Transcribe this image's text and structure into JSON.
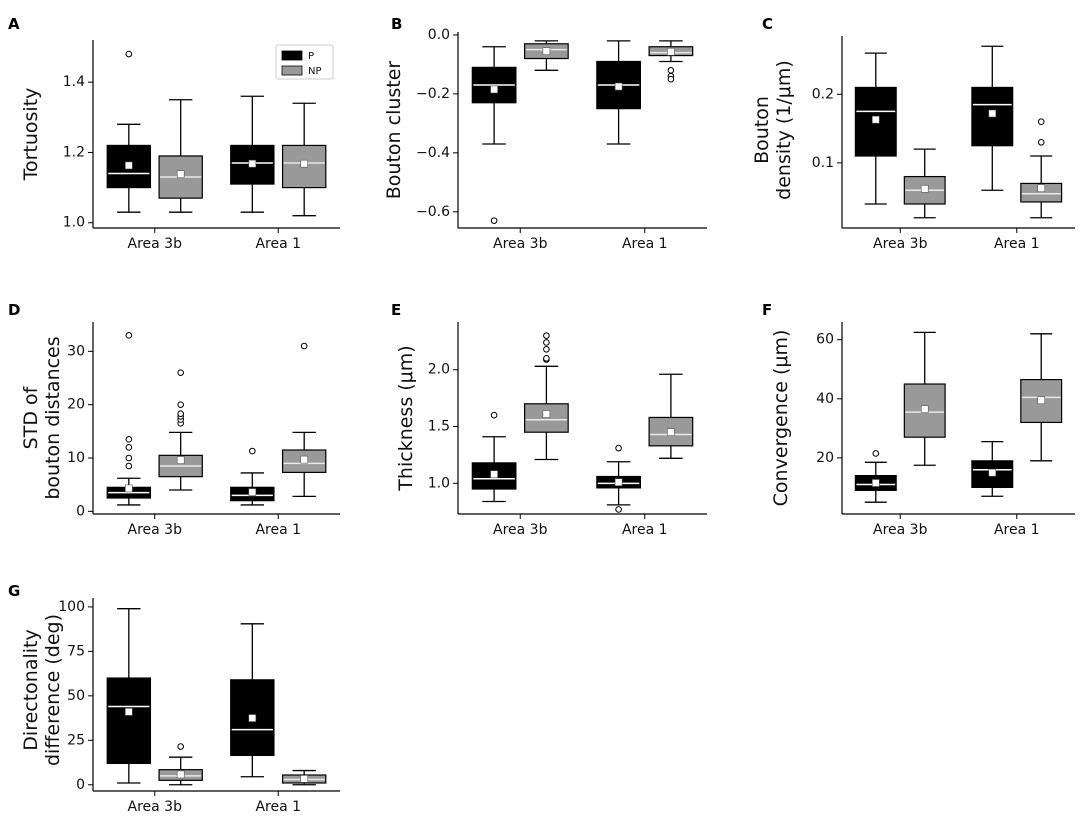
{
  "colors": {
    "P": "#000000",
    "NP": "#999999",
    "median_P": "#ffffff",
    "median_NP": "#e8e8e8",
    "mean_marker": "#ffffff"
  },
  "legend": {
    "entries": [
      "P",
      "NP"
    ]
  },
  "chart_data": [
    {
      "type": "box",
      "panel": "A",
      "ylabel": [
        "Tortuosity"
      ],
      "categories": [
        "Area 3b",
        "Area 1"
      ],
      "ylim": [
        0.985,
        1.52
      ],
      "yticks": [
        1.0,
        1.2,
        1.4
      ],
      "ytick_labels": [
        "1.0",
        "1.2",
        "1.4"
      ],
      "legend": true,
      "series": [
        {
          "name": "P",
          "boxes": [
            {
              "whislo": 1.03,
              "q1": 1.1,
              "med": 1.14,
              "q3": 1.22,
              "whishi": 1.28,
              "mean": 1.163,
              "fliers": [
                1.48
              ]
            },
            {
              "whislo": 1.03,
              "q1": 1.11,
              "med": 1.17,
              "q3": 1.22,
              "whishi": 1.36,
              "mean": 1.168,
              "fliers": []
            }
          ]
        },
        {
          "name": "NP",
          "boxes": [
            {
              "whislo": 1.03,
              "q1": 1.07,
              "med": 1.13,
              "q3": 1.19,
              "whishi": 1.35,
              "mean": 1.138,
              "fliers": []
            },
            {
              "whislo": 1.02,
              "q1": 1.1,
              "med": 1.17,
              "q3": 1.22,
              "whishi": 1.34,
              "mean": 1.168,
              "fliers": []
            }
          ]
        }
      ]
    },
    {
      "type": "box",
      "panel": "B",
      "ylabel": [
        "Bouton cluster"
      ],
      "categories": [
        "Area 3b",
        "Area 1"
      ],
      "ylim": [
        -0.655,
        0.01
      ],
      "yticks": [
        -0.6,
        -0.4,
        -0.2,
        0.0
      ],
      "ytick_labels": [
        "−0.6",
        "−0.4",
        "−0.2",
        "0.0"
      ],
      "series": [
        {
          "name": "P",
          "boxes": [
            {
              "whislo": -0.37,
              "q1": -0.23,
              "med": -0.17,
              "q3": -0.11,
              "whishi": -0.04,
              "mean": -0.185,
              "fliers": [
                -0.63
              ]
            },
            {
              "whislo": -0.37,
              "q1": -0.25,
              "med": -0.17,
              "q3": -0.09,
              "whishi": -0.02,
              "mean": -0.175,
              "fliers": []
            }
          ]
        },
        {
          "name": "NP",
          "boxes": [
            {
              "whislo": -0.12,
              "q1": -0.08,
              "med": -0.05,
              "q3": -0.03,
              "whishi": -0.02,
              "mean": -0.055,
              "fliers": []
            },
            {
              "whislo": -0.09,
              "q1": -0.07,
              "med": -0.06,
              "q3": -0.04,
              "whishi": -0.02,
              "mean": -0.057,
              "fliers": [
                -0.12,
                -0.14,
                -0.15
              ]
            }
          ]
        }
      ]
    },
    {
      "type": "box",
      "panel": "C",
      "ylabel": [
        "Bouton",
        "density (1/μm)"
      ],
      "categories": [
        "Area 3b",
        "Area 1"
      ],
      "ylim": [
        0.005,
        0.285
      ],
      "yticks": [
        0.1,
        0.2
      ],
      "ytick_labels": [
        "0.1",
        "0.2"
      ],
      "series": [
        {
          "name": "P",
          "boxes": [
            {
              "whislo": 0.04,
              "q1": 0.11,
              "med": 0.175,
              "q3": 0.21,
              "whishi": 0.26,
              "mean": 0.163,
              "fliers": []
            },
            {
              "whislo": 0.06,
              "q1": 0.125,
              "med": 0.185,
              "q3": 0.21,
              "whishi": 0.27,
              "mean": 0.172,
              "fliers": []
            }
          ]
        },
        {
          "name": "NP",
          "boxes": [
            {
              "whislo": 0.02,
              "q1": 0.04,
              "med": 0.06,
              "q3": 0.08,
              "whishi": 0.12,
              "mean": 0.062,
              "fliers": []
            },
            {
              "whislo": 0.02,
              "q1": 0.043,
              "med": 0.055,
              "q3": 0.07,
              "whishi": 0.11,
              "mean": 0.063,
              "fliers": [
                0.13,
                0.16
              ]
            }
          ]
        }
      ]
    },
    {
      "type": "box",
      "panel": "D",
      "ylabel": [
        "STD of",
        "bouton distances"
      ],
      "categories": [
        "Area 3b",
        "Area 1"
      ],
      "ylim": [
        -0.5,
        35.5
      ],
      "yticks": [
        0,
        10,
        20,
        30
      ],
      "ytick_labels": [
        "0",
        "10",
        "20",
        "30"
      ],
      "series": [
        {
          "name": "P",
          "boxes": [
            {
              "whislo": 1.2,
              "q1": 2.5,
              "med": 3.5,
              "q3": 4.5,
              "whishi": 6.2,
              "mean": 4.3,
              "fliers": [
                8.5,
                10,
                12,
                13.5,
                33
              ]
            },
            {
              "whislo": 1.2,
              "q1": 2.0,
              "med": 3.0,
              "q3": 4.5,
              "whishi": 7.2,
              "mean": 3.6,
              "fliers": [
                11.3
              ]
            }
          ]
        },
        {
          "name": "NP",
          "boxes": [
            {
              "whislo": 4.0,
              "q1": 6.5,
              "med": 8.5,
              "q3": 10.5,
              "whishi": 14.8,
              "mean": 9.6,
              "fliers": [
                16.5,
                17.2,
                17.8,
                18.3,
                20,
                26
              ]
            },
            {
              "whislo": 2.8,
              "q1": 7.3,
              "med": 9.0,
              "q3": 11.5,
              "whishi": 14.8,
              "mean": 9.7,
              "fliers": [
                31
              ]
            }
          ]
        }
      ]
    },
    {
      "type": "box",
      "panel": "E",
      "ylabel": [
        "Thickness (μm)"
      ],
      "categories": [
        "Area 3b",
        "Area 1"
      ],
      "ylim": [
        0.73,
        2.42
      ],
      "yticks": [
        1.0,
        1.5,
        2.0
      ],
      "ytick_labels": [
        "1.0",
        "1.5",
        "2.0"
      ],
      "series": [
        {
          "name": "P",
          "boxes": [
            {
              "whislo": 0.84,
              "q1": 0.95,
              "med": 1.04,
              "q3": 1.18,
              "whishi": 1.41,
              "mean": 1.08,
              "fliers": [
                1.6
              ]
            },
            {
              "whislo": 0.81,
              "q1": 0.96,
              "med": 1.0,
              "q3": 1.06,
              "whishi": 1.19,
              "mean": 1.01,
              "fliers": [
                0.77,
                1.31
              ]
            }
          ]
        },
        {
          "name": "NP",
          "boxes": [
            {
              "whislo": 1.21,
              "q1": 1.45,
              "med": 1.56,
              "q3": 1.7,
              "whishi": 2.03,
              "mean": 1.61,
              "fliers": [
                2.09,
                2.1,
                2.18,
                2.24,
                2.3
              ]
            },
            {
              "whislo": 1.22,
              "q1": 1.33,
              "med": 1.43,
              "q3": 1.58,
              "whishi": 1.96,
              "mean": 1.45,
              "fliers": []
            }
          ]
        }
      ]
    },
    {
      "type": "box",
      "panel": "F",
      "ylabel": [
        "Convergence (μm)"
      ],
      "categories": [
        "Area 3b",
        "Area 1"
      ],
      "ylim": [
        1,
        66
      ],
      "yticks": [
        20,
        40,
        60
      ],
      "ytick_labels": [
        "20",
        "40",
        "60"
      ],
      "series": [
        {
          "name": "P",
          "boxes": [
            {
              "whislo": 5,
              "q1": 9,
              "med": 11,
              "q3": 14,
              "whishi": 18.5,
              "mean": 11.5,
              "fliers": [
                21.5
              ]
            },
            {
              "whislo": 7,
              "q1": 10,
              "med": 16,
              "q3": 19,
              "whishi": 25.5,
              "mean": 15,
              "fliers": []
            }
          ]
        },
        {
          "name": "NP",
          "boxes": [
            {
              "whislo": 17.5,
              "q1": 27,
              "med": 35.5,
              "q3": 45,
              "whishi": 62.5,
              "mean": 36.5,
              "fliers": []
            },
            {
              "whislo": 19,
              "q1": 32,
              "med": 40.5,
              "q3": 46.5,
              "whishi": 62,
              "mean": 39.5,
              "fliers": []
            }
          ]
        }
      ]
    },
    {
      "type": "box",
      "panel": "G",
      "ylabel": [
        "Directonality",
        "difference (deg)"
      ],
      "categories": [
        "Area 3b",
        "Area 1"
      ],
      "ylim": [
        -3.5,
        105
      ],
      "yticks": [
        0,
        25,
        50,
        75,
        100
      ],
      "ytick_labels": [
        "0",
        "25",
        "50",
        "75",
        "100"
      ],
      "series": [
        {
          "name": "P",
          "boxes": [
            {
              "whislo": 1,
              "q1": 12,
              "med": 44,
              "q3": 60,
              "whishi": 99,
              "mean": 41,
              "fliers": []
            },
            {
              "whislo": 4.5,
              "q1": 16.5,
              "med": 31,
              "q3": 59,
              "whishi": 90.5,
              "mean": 37.5,
              "fliers": []
            }
          ]
        },
        {
          "name": "NP",
          "boxes": [
            {
              "whislo": 0,
              "q1": 2.5,
              "med": 5,
              "q3": 8.5,
              "whishi": 15.5,
              "mean": 5.8,
              "fliers": [
                21.5
              ]
            },
            {
              "whislo": 0,
              "q1": 1,
              "med": 3,
              "q3": 5.5,
              "whishi": 8,
              "mean": 3.3,
              "fliers": []
            }
          ]
        }
      ]
    }
  ]
}
